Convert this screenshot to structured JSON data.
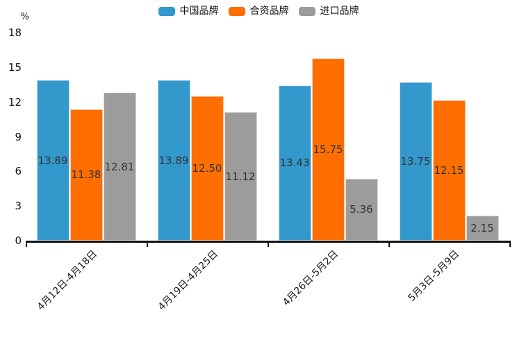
{
  "legend": {
    "items": [
      {
        "label": "中国品牌",
        "color": "#3398CC"
      },
      {
        "label": "合资品牌",
        "color": "#FF6E00"
      },
      {
        "label": "进口品牌",
        "color": "#9C9C9C"
      }
    ]
  },
  "chart_data": {
    "type": "bar",
    "categories": [
      "4月12日-4月18日",
      "4月19日-4月25日",
      "4月26日-5月2日",
      "5月3日-5月9日"
    ],
    "series": [
      {
        "name": "中国品牌",
        "color": "#3398CC",
        "values": [
          13.89,
          13.89,
          13.43,
          13.75
        ]
      },
      {
        "name": "合资品牌",
        "color": "#FF6E00",
        "values": [
          11.38,
          12.5,
          15.75,
          12.15
        ]
      },
      {
        "name": "进口品牌",
        "color": "#9C9C9C",
        "values": [
          12.81,
          11.12,
          5.36,
          2.15
        ]
      }
    ],
    "title": "",
    "xlabel": "",
    "ylabel": "%",
    "ylim": [
      0,
      18
    ],
    "yticks": [
      0,
      3,
      6,
      9,
      12,
      15,
      18
    ],
    "grid": false,
    "legend_position": "top",
    "bar_value_labels": true,
    "value_label_color": "#333333",
    "axis_color": "#111111"
  }
}
